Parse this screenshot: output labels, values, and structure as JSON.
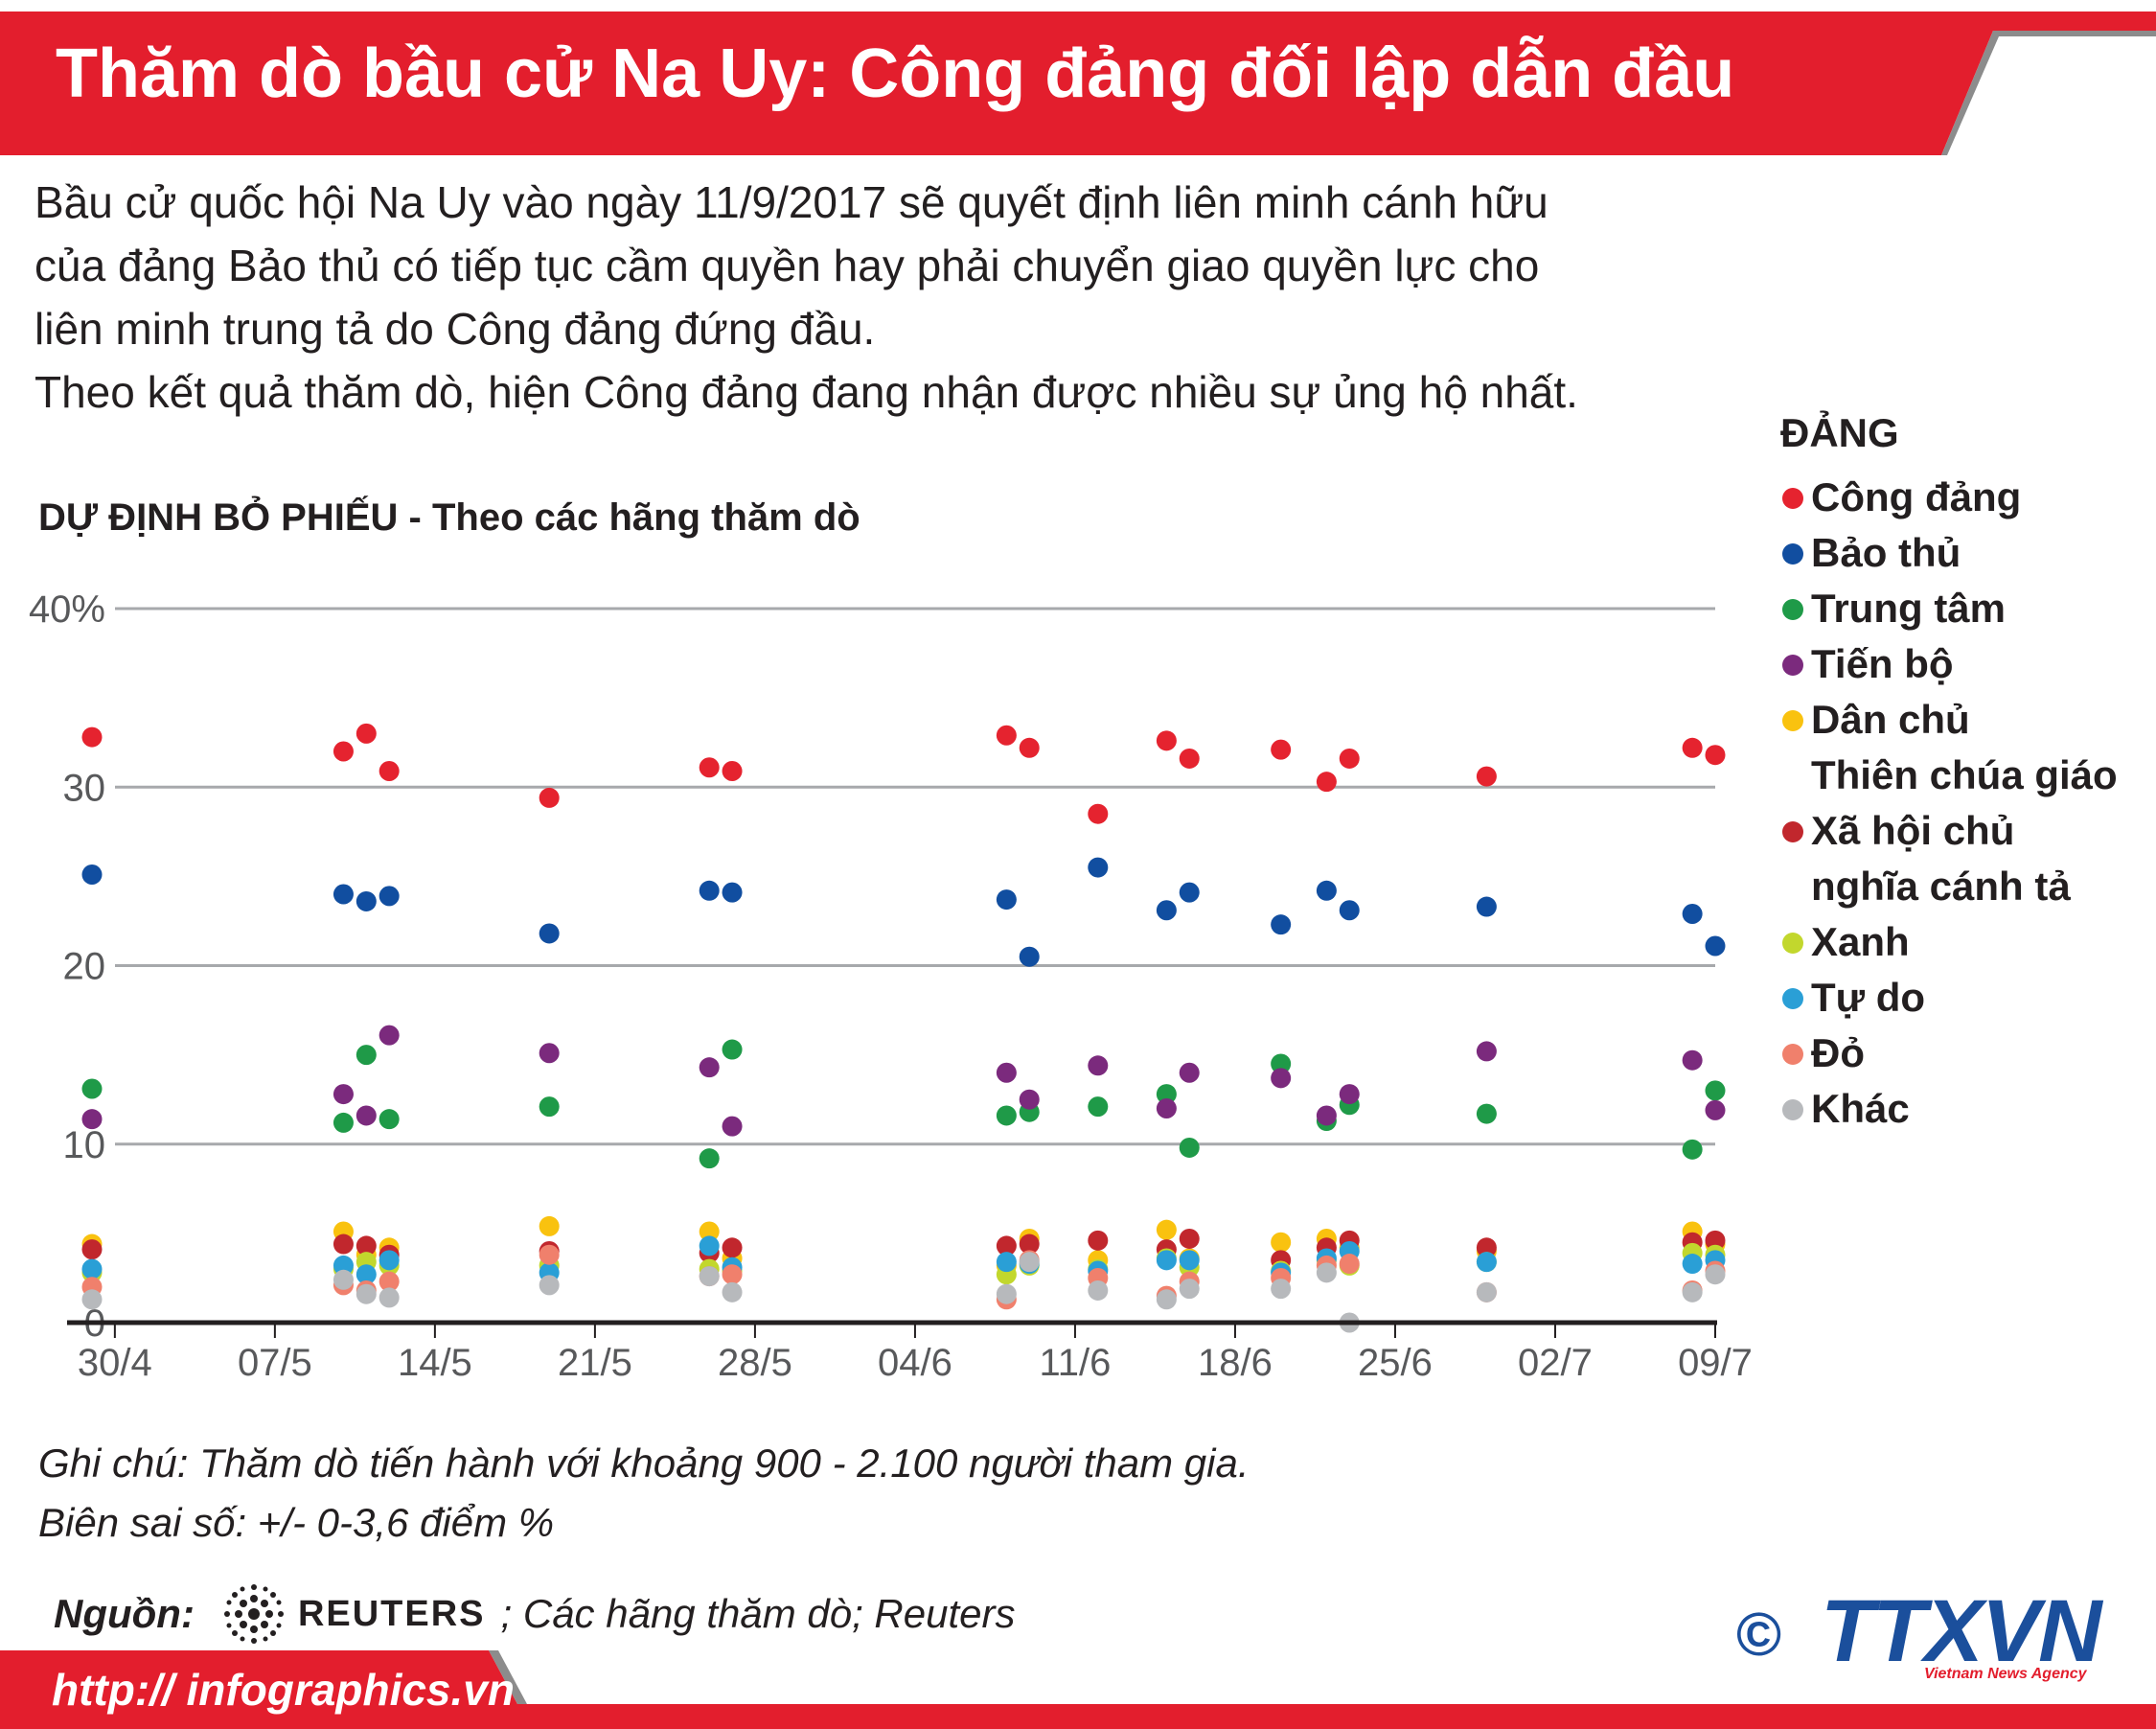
{
  "header": {
    "title": "Thăm dò bầu cử Na Uy: Công đảng đối lập dẫn đầu"
  },
  "intro": {
    "line1": "Bầu cử quốc hội Na Uy vào ngày 11/9/2017 sẽ quyết định liên minh cánh hữu",
    "line2": "của đảng Bảo thủ có tiếp tục cầm quyền hay phải chuyển giao quyền lực cho",
    "line3": "liên minh trung tả do Công đảng đứng đầu.",
    "line4": "Theo kết quả thăm dò, hiện Công đảng đang nhận được nhiều sự ủng hộ nhất."
  },
  "chart_title": "DỰ ĐỊNH BỎ PHIẾU - Theo các hãng thăm dò",
  "legend": {
    "title": "ĐẢNG",
    "items": [
      {
        "label": "Công đảng",
        "label2": "",
        "color": "#e5232f"
      },
      {
        "label": "Bảo thủ",
        "label2": "",
        "color": "#114ea0"
      },
      {
        "label": "Trung tâm",
        "label2": "",
        "color": "#1f9a48"
      },
      {
        "label": "Tiến bộ",
        "label2": "",
        "color": "#7b2a7d"
      },
      {
        "label": "Dân chủ",
        "label2": "Thiên chúa giáo",
        "color": "#f9c20f"
      },
      {
        "label": "Xã hội chủ",
        "label2": "nghĩa cánh tả",
        "color": "#c1272d"
      },
      {
        "label": "Xanh",
        "label2": "",
        "color": "#c2d72d"
      },
      {
        "label": "Tự do",
        "label2": "",
        "color": "#2a9fd6"
      },
      {
        "label": "Đỏ",
        "label2": "",
        "color": "#f0806c"
      },
      {
        "label": "Khác",
        "label2": "",
        "color": "#b7b9bc"
      }
    ]
  },
  "chart_data": {
    "type": "scatter",
    "title": "DỰ ĐỊNH BỎ PHIẾU - Theo các hãng thăm dò",
    "xlabel": "",
    "ylabel": "",
    "ylim": [
      0,
      40
    ],
    "yticks": [
      0,
      10,
      20,
      30,
      40
    ],
    "ytick_labels": [
      "0",
      "10",
      "20",
      "30",
      "40%"
    ],
    "xlim": [
      "2017-04-29",
      "2017-07-09"
    ],
    "xticks": [
      "2017-04-30",
      "2017-05-07",
      "2017-05-14",
      "2017-05-21",
      "2017-05-28",
      "2017-06-04",
      "2017-06-11",
      "2017-06-18",
      "2017-06-25",
      "2017-07-02",
      "2017-07-09"
    ],
    "xtick_labels": [
      "30/4",
      "07/5",
      "14/5",
      "21/5",
      "28/5",
      "04/6",
      "11/6",
      "18/6",
      "25/6",
      "02/7",
      "09/7"
    ],
    "grid": true,
    "legend_position": "right",
    "x": [
      "2017-04-29",
      "2017-05-10",
      "2017-05-11",
      "2017-05-12",
      "2017-05-19",
      "2017-05-26",
      "2017-05-27",
      "2017-06-08",
      "2017-06-09",
      "2017-06-12",
      "2017-06-15",
      "2017-06-16",
      "2017-06-20",
      "2017-06-22",
      "2017-06-23",
      "2017-06-29",
      "2017-07-08",
      "2017-07-09"
    ],
    "series": [
      {
        "name": "Công đảng",
        "color": "#e5232f",
        "values": [
          32.8,
          32.0,
          33.0,
          30.9,
          29.4,
          31.1,
          30.9,
          32.9,
          32.2,
          28.5,
          32.6,
          31.6,
          32.1,
          30.3,
          31.6,
          30.6,
          32.2,
          31.8
        ]
      },
      {
        "name": "Bảo thủ",
        "color": "#114ea0",
        "values": [
          25.1,
          24.0,
          23.6,
          23.9,
          21.8,
          24.2,
          24.1,
          23.7,
          20.5,
          25.5,
          23.1,
          24.1,
          22.3,
          24.2,
          23.1,
          23.3,
          22.9,
          21.1
        ]
      },
      {
        "name": "Trung tâm",
        "color": "#1f9a48",
        "values": [
          13.1,
          11.2,
          15.0,
          11.4,
          12.1,
          9.2,
          15.3,
          11.6,
          11.8,
          12.1,
          12.8,
          9.8,
          14.5,
          11.3,
          12.2,
          11.7,
          9.7,
          13.0
        ]
      },
      {
        "name": "Tiến bộ",
        "color": "#7b2a7d",
        "values": [
          11.4,
          12.8,
          11.6,
          16.1,
          15.1,
          14.3,
          11.0,
          14.0,
          12.5,
          14.4,
          12.0,
          14.0,
          13.7,
          11.6,
          12.8,
          15.2,
          14.7,
          11.9
        ]
      },
      {
        "name": "Dân chủ Thiên chúa giáo",
        "color": "#f9c20f",
        "values": [
          4.4,
          5.1,
          3.8,
          4.2,
          5.4,
          5.1,
          3.6,
          3.2,
          4.7,
          3.5,
          5.2,
          3.6,
          4.5,
          4.7,
          4.2,
          4.0,
          5.1,
          4.4
        ]
      },
      {
        "name": "Xã hội chủ nghĩa cánh tả",
        "color": "#c1272d",
        "values": [
          4.1,
          4.4,
          4.3,
          3.8,
          4.0,
          3.9,
          4.2,
          4.3,
          4.4,
          4.6,
          4.1,
          4.7,
          3.5,
          4.2,
          4.6,
          4.2,
          4.5,
          4.6
        ]
      },
      {
        "name": "Xanh",
        "color": "#c2d72d",
        "values": [
          2.8,
          3.0,
          3.4,
          3.2,
          3.2,
          3.0,
          2.9,
          2.7,
          3.2,
          3.0,
          3.6,
          3.1,
          2.9,
          3.5,
          3.2,
          3.4,
          3.9,
          3.8
        ]
      },
      {
        "name": "Tự do",
        "color": "#2a9fd6",
        "values": [
          3.0,
          3.2,
          2.7,
          3.5,
          2.8,
          4.3,
          3.1,
          3.4,
          3.3,
          2.9,
          3.5,
          3.5,
          2.8,
          3.6,
          4.0,
          3.4,
          3.3,
          3.5
        ]
      },
      {
        "name": "Đỏ",
        "color": "#f0806c",
        "values": [
          2.0,
          2.1,
          1.8,
          2.3,
          3.8,
          2.6,
          2.7,
          1.3,
          3.5,
          2.5,
          1.5,
          2.3,
          2.5,
          3.2,
          3.3,
          1.7,
          1.8,
          2.9
        ]
      },
      {
        "name": "Khác",
        "color": "#b7b9bc",
        "values": [
          1.3,
          2.4,
          1.6,
          1.4,
          2.1,
          2.6,
          1.7,
          1.6,
          3.4,
          1.8,
          1.3,
          1.9,
          1.9,
          2.8,
          0.0,
          1.7,
          1.7,
          2.7
        ]
      }
    ]
  },
  "note": {
    "line1": "Ghi chú: Thăm dò tiến hành với khoảng 900 - 2.100 người tham gia.",
    "line2": "Biên sai số: +/- 0-3,6 điểm %"
  },
  "source": {
    "label": "Nguồn:",
    "reuters": "REUTERS",
    "text": "; Các hãng thăm dò; Reuters"
  },
  "footer": {
    "url": "http:// infographics.vn"
  },
  "logo": {
    "copyright": "©",
    "name": "TTXVN",
    "tagline": "Vietnam News Agency"
  }
}
